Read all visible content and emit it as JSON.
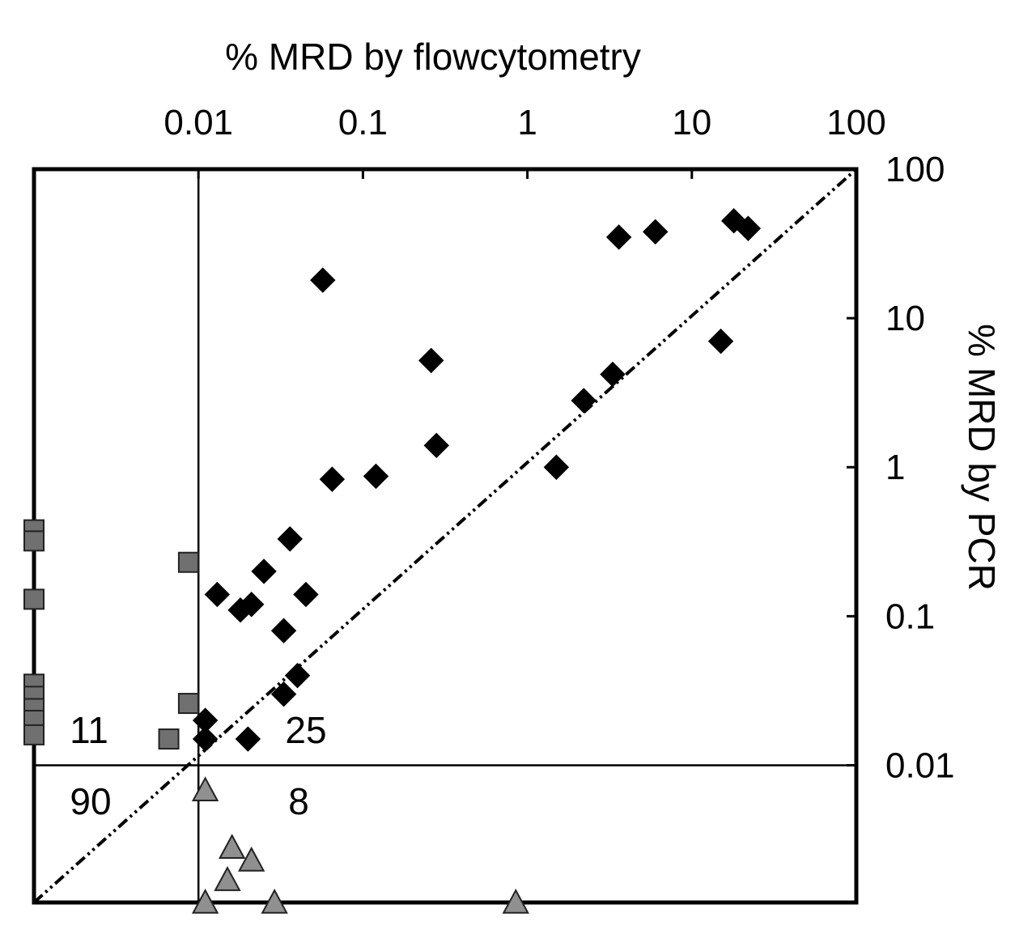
{
  "chart_data": {
    "type": "scatter",
    "x_scale": "log",
    "y_scale": "log",
    "xlabel": "% MRD by flowcytometry",
    "ylabel": "% MRD by PCR",
    "x_ticks": [
      "0.01",
      "0.1",
      "1",
      "10",
      "100"
    ],
    "y_ticks": [
      "100",
      "10",
      "1",
      "0.1",
      "0.01"
    ],
    "x_tick_values": [
      0.01,
      0.1,
      1,
      10,
      100
    ],
    "y_tick_values": [
      100,
      10,
      1,
      0.1,
      0.01
    ],
    "xlim": [
      0.001,
      100
    ],
    "ylim": [
      0.0012,
      100
    ],
    "axis_position": {
      "x": "top",
      "y": "right"
    },
    "grid": false,
    "threshold_lines": {
      "x": 0.01,
      "y": 0.01
    },
    "diagonal_line": {
      "style": "dash-dot",
      "from": [
        0.001,
        0.0012
      ],
      "to": [
        100,
        100
      ]
    },
    "quadrant_counts": [
      {
        "quadrant": "upper-left",
        "value": "11"
      },
      {
        "quadrant": "upper-right",
        "value": "25"
      },
      {
        "quadrant": "lower-left",
        "value": "90"
      },
      {
        "quadrant": "lower-right",
        "value": "8"
      }
    ],
    "series": [
      {
        "marker": "diamond",
        "color": "#000000",
        "points": [
          [
            0.013,
            0.14
          ],
          [
            0.018,
            0.11
          ],
          [
            0.021,
            0.12
          ],
          [
            0.025,
            0.2
          ],
          [
            0.033,
            0.08
          ],
          [
            0.036,
            0.33
          ],
          [
            0.045,
            0.14
          ],
          [
            0.04,
            0.04
          ],
          [
            0.033,
            0.03
          ],
          [
            0.065,
            0.83
          ],
          [
            0.12,
            0.87
          ],
          [
            0.057,
            18
          ],
          [
            0.26,
            5.2
          ],
          [
            0.28,
            1.4
          ],
          [
            1.5,
            1.0
          ],
          [
            2.2,
            2.8
          ],
          [
            3.3,
            4.2
          ],
          [
            3.6,
            35
          ],
          [
            6.0,
            38
          ],
          [
            15,
            7.0
          ],
          [
            18,
            45
          ],
          [
            22,
            40
          ],
          [
            0.011,
            0.02
          ],
          [
            0.011,
            0.015
          ],
          [
            0.02,
            0.015
          ]
        ]
      },
      {
        "marker": "square",
        "color": "#707070",
        "points": [
          [
            0.001,
            0.38
          ],
          [
            0.001,
            0.32
          ],
          [
            0.001,
            0.13
          ],
          [
            0.001,
            0.035
          ],
          [
            0.001,
            0.029
          ],
          [
            0.001,
            0.024
          ],
          [
            0.001,
            0.02
          ],
          [
            0.001,
            0.016
          ],
          [
            0.0087,
            0.23
          ],
          [
            0.0087,
            0.026
          ],
          [
            0.0066,
            0.015
          ]
        ]
      },
      {
        "marker": "triangle",
        "color": "#909090",
        "points": [
          [
            0.011,
            0.0068
          ],
          [
            0.016,
            0.0028
          ],
          [
            0.021,
            0.0023
          ],
          [
            0.015,
            0.0017
          ],
          [
            0.011,
            0.0012
          ],
          [
            0.029,
            0.0012
          ],
          [
            0.85,
            0.0012
          ]
        ]
      }
    ]
  }
}
